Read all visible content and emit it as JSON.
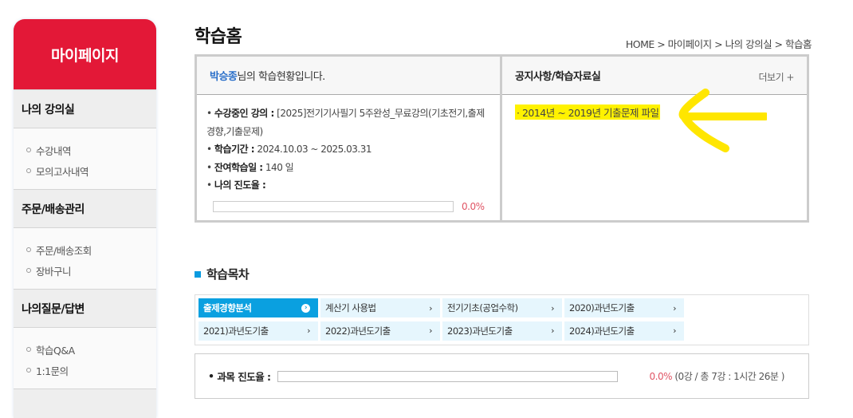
{
  "sidebar": {
    "title": "마이페이지",
    "sections": [
      {
        "label": "나의 강의실",
        "items": [
          "수강내역",
          "모의고사내역"
        ]
      },
      {
        "label": "주문/배송관리",
        "items": [
          "주문/배송조회",
          "장바구니"
        ]
      },
      {
        "label": "나의질문/답변",
        "items": [
          "학습Q&A",
          "1:1문의"
        ]
      }
    ]
  },
  "header": {
    "title": "학습홈",
    "breadcrumb": "HOME > 마이페이지 > 나의 강의실 > 학습홈"
  },
  "status": {
    "user": "박승종",
    "greeting": "님의 학습현황입니다.",
    "course_label": "수강중인 강의 :",
    "course": "[2025]전기기사필기 5주완성_무료강의(기초전기,출제경향,기출문제)",
    "period_label": "학습기간 :",
    "period": "2024.10.03 ~ 2025.03.31",
    "remain_label": "잔여학습일 :",
    "remain": "140 일",
    "progress_label": "나의 진도율 :",
    "progress": "0.0%",
    "progress_value": 0
  },
  "notice": {
    "title": "공지사항/학습자료실",
    "more": "더보기 +",
    "items": [
      "2014년 ~ 2019년 기출문제 파일"
    ],
    "highlight_color": "#fff200",
    "arrow_color": "#ffe600"
  },
  "toc": {
    "title": "학습목차",
    "tabs": [
      "출제경향분석",
      "계산기 사용법",
      "전기기초(공업수학)",
      "2020)과년도기출",
      "2021)과년도기출",
      "2022)과년도기출",
      "2023)과년도기출",
      "2024)과년도기출"
    ],
    "active": 0
  },
  "subject": {
    "label": "과목 진도율 :",
    "percent": "0.0%",
    "detail": "(0강 / 총 7강 : 1시간 26분 )",
    "progress_value": 0
  },
  "colors": {
    "brand": "#e31837",
    "accent": "#0aa0e0"
  }
}
